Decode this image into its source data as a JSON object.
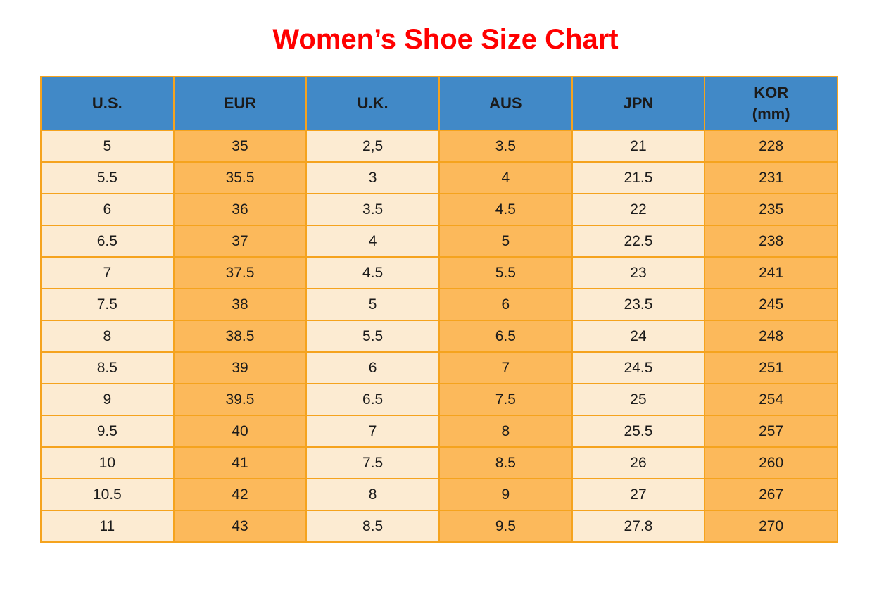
{
  "page": {
    "title": "Women’s Shoe Size Chart"
  },
  "colors": {
    "title_red": "#ff0000",
    "header_blue": "#4189c7",
    "cell_cream": "#fcebd2",
    "cell_orange": "#fcb95b",
    "border_orange": "#f5a31e",
    "text": "#1b1b1b"
  },
  "table": {
    "columns": [
      {
        "label": "U.S."
      },
      {
        "label": "EUR"
      },
      {
        "label": "U.K."
      },
      {
        "label": "AUS"
      },
      {
        "label": "JPN"
      },
      {
        "label": "KOR\n(mm)"
      }
    ]
  },
  "chart_data": {
    "type": "table",
    "title": "Women’s Shoe Size Chart",
    "columns": [
      "U.S.",
      "EUR",
      "U.K.",
      "AUS",
      "JPN",
      "KOR (mm)"
    ],
    "rows": [
      [
        "5",
        "35",
        "2,5",
        "3.5",
        "21",
        "228"
      ],
      [
        "5.5",
        "35.5",
        "3",
        "4",
        "21.5",
        "231"
      ],
      [
        "6",
        "36",
        "3.5",
        "4.5",
        "22",
        "235"
      ],
      [
        "6.5",
        "37",
        "4",
        "5",
        "22.5",
        "238"
      ],
      [
        "7",
        "37.5",
        "4.5",
        "5.5",
        "23",
        "241"
      ],
      [
        "7.5",
        "38",
        "5",
        "6",
        "23.5",
        "245"
      ],
      [
        "8",
        "38.5",
        "5.5",
        "6.5",
        "24",
        "248"
      ],
      [
        "8.5",
        "39",
        "6",
        "7",
        "24.5",
        "251"
      ],
      [
        "9",
        "39.5",
        "6.5",
        "7.5",
        "25",
        "254"
      ],
      [
        "9.5",
        "40",
        "7",
        "8",
        "25.5",
        "257"
      ],
      [
        "10",
        "41",
        "7.5",
        "8.5",
        "26",
        "260"
      ],
      [
        "10.5",
        "42",
        "8",
        "9",
        "27",
        "267"
      ],
      [
        "11",
        "43",
        "8.5",
        "9.5",
        "27.8",
        "270"
      ]
    ]
  }
}
